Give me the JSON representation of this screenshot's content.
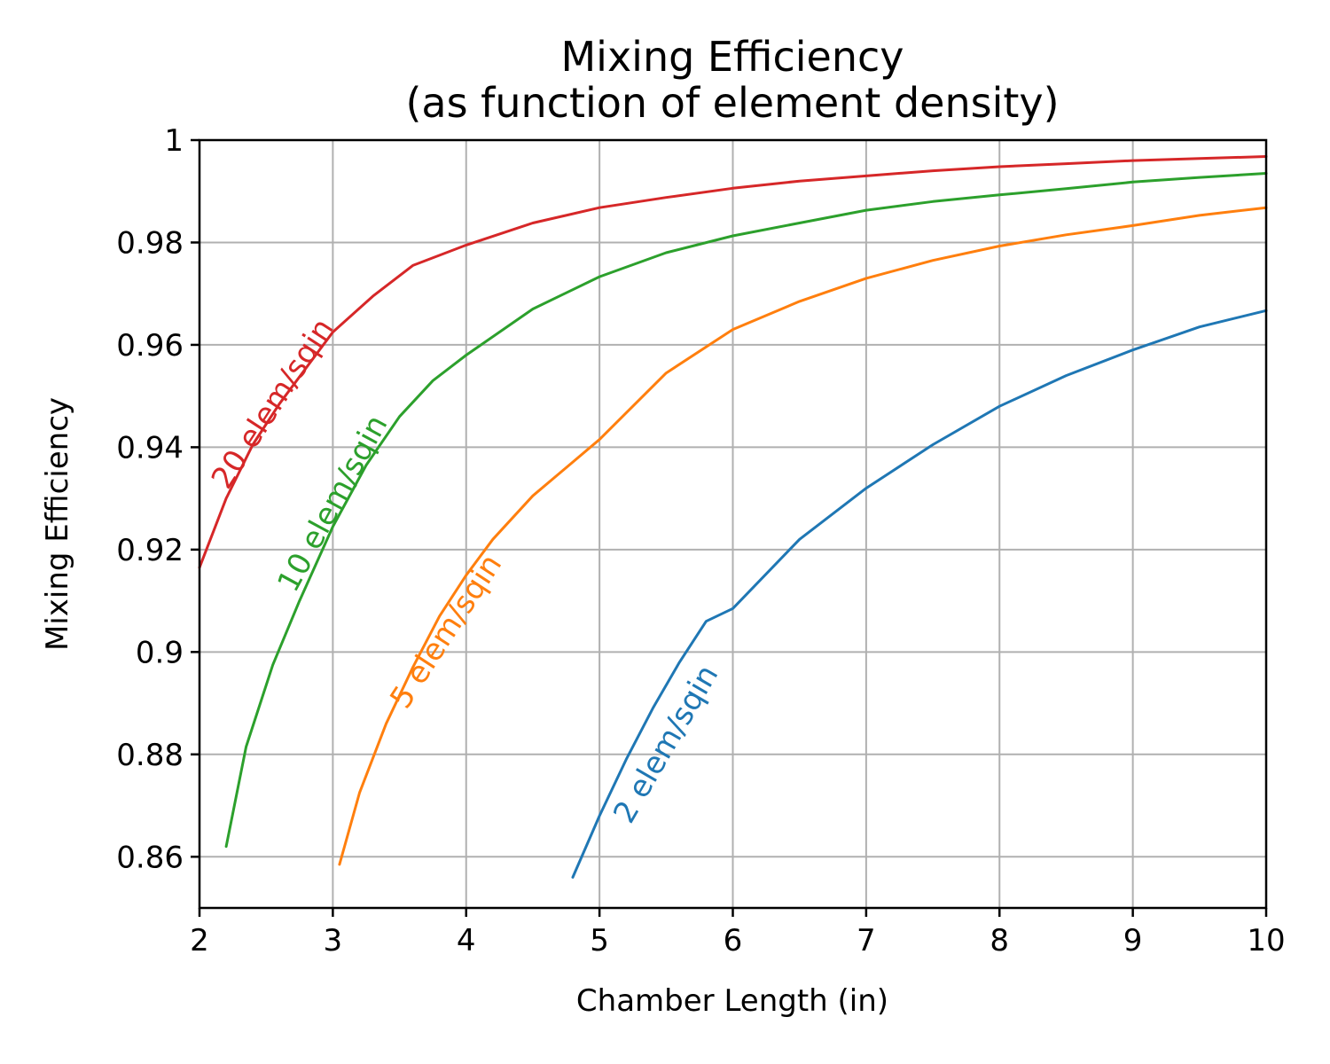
{
  "chart_data": {
    "type": "line",
    "title": "Mixing Efficiency",
    "subtitle": "(as function of element density)",
    "xlabel": "Chamber Length (in)",
    "ylabel": "Mixing Efficiency",
    "xlim": [
      2,
      10
    ],
    "ylim": [
      0.85,
      1.0
    ],
    "x_ticks": [
      {
        "value": 2,
        "label": "2"
      },
      {
        "value": 3,
        "label": "3"
      },
      {
        "value": 4,
        "label": "4"
      },
      {
        "value": 5,
        "label": "5"
      },
      {
        "value": 6,
        "label": "6"
      },
      {
        "value": 7,
        "label": "7"
      },
      {
        "value": 8,
        "label": "8"
      },
      {
        "value": 9,
        "label": "9"
      },
      {
        "value": 10,
        "label": "10"
      }
    ],
    "y_ticks": [
      {
        "value": 0.86,
        "label": "0.86"
      },
      {
        "value": 0.88,
        "label": "0.88"
      },
      {
        "value": 0.9,
        "label": "0.9"
      },
      {
        "value": 0.92,
        "label": "0.92"
      },
      {
        "value": 0.94,
        "label": "0.94"
      },
      {
        "value": 0.96,
        "label": "0.96"
      },
      {
        "value": 0.98,
        "label": "0.98"
      },
      {
        "value": 1.0,
        "label": "1"
      }
    ],
    "grid": true,
    "legend": "inline labels on curves",
    "series": [
      {
        "name": "2 elem/sqin",
        "color": "#1f77b4",
        "x": [
          4.8,
          5.0,
          5.2,
          5.4,
          5.6,
          5.8,
          6.0,
          6.5,
          7.0,
          7.5,
          8.0,
          8.5,
          9.0,
          9.5,
          10.0
        ],
        "y": [
          0.856,
          0.868,
          0.879,
          0.889,
          0.898,
          0.906,
          0.9085,
          0.922,
          0.932,
          0.9405,
          0.948,
          0.954,
          0.959,
          0.9635,
          0.9667
        ],
        "label_at": [
          5.5,
          0.882
        ]
      },
      {
        "name": "5 elem/sqin",
        "color": "#ff7f0e",
        "x": [
          3.05,
          3.2,
          3.4,
          3.6,
          3.8,
          4.0,
          4.2,
          4.5,
          5.0,
          5.5,
          6.0,
          6.5,
          7.0,
          7.5,
          8.0,
          8.5,
          9.0,
          9.5,
          10.0
        ],
        "y": [
          0.8585,
          0.8725,
          0.886,
          0.897,
          0.907,
          0.915,
          0.922,
          0.9305,
          0.9415,
          0.9545,
          0.963,
          0.9685,
          0.973,
          0.9765,
          0.9793,
          0.9815,
          0.9833,
          0.9853,
          0.9868
        ],
        "label_at": [
          3.85,
          0.904
        ]
      },
      {
        "name": "10 elem/sqin",
        "color": "#2ca02c",
        "x": [
          2.2,
          2.35,
          2.55,
          2.75,
          3.0,
          3.25,
          3.5,
          3.75,
          4.0,
          4.5,
          5.0,
          5.5,
          6.0,
          6.5,
          7.0,
          7.5,
          8.0,
          8.5,
          9.0,
          9.5,
          10.0
        ],
        "y": [
          0.862,
          0.8815,
          0.8975,
          0.91,
          0.9245,
          0.9365,
          0.946,
          0.953,
          0.958,
          0.967,
          0.9733,
          0.978,
          0.9813,
          0.9838,
          0.9863,
          0.988,
          0.9893,
          0.9905,
          0.9918,
          0.9927,
          0.9935
        ],
        "label_at": [
          3.0,
          0.929
        ]
      },
      {
        "name": "20 elem/sqin",
        "color": "#d62728",
        "x": [
          2.0,
          2.2,
          2.4,
          2.6,
          2.8,
          3.0,
          3.3,
          3.6,
          4.0,
          4.5,
          5.0,
          5.5,
          6.0,
          6.5,
          7.0,
          7.5,
          8.0,
          8.5,
          9.0,
          9.5,
          10.0
        ],
        "y": [
          0.9165,
          0.93,
          0.9405,
          0.9485,
          0.9555,
          0.9625,
          0.9695,
          0.9755,
          0.9795,
          0.9838,
          0.9868,
          0.9888,
          0.9906,
          0.992,
          0.993,
          0.994,
          0.9948,
          0.9954,
          0.996,
          0.9964,
          0.9968
        ],
        "label_at": [
          2.55,
          0.9485
        ]
      }
    ]
  }
}
